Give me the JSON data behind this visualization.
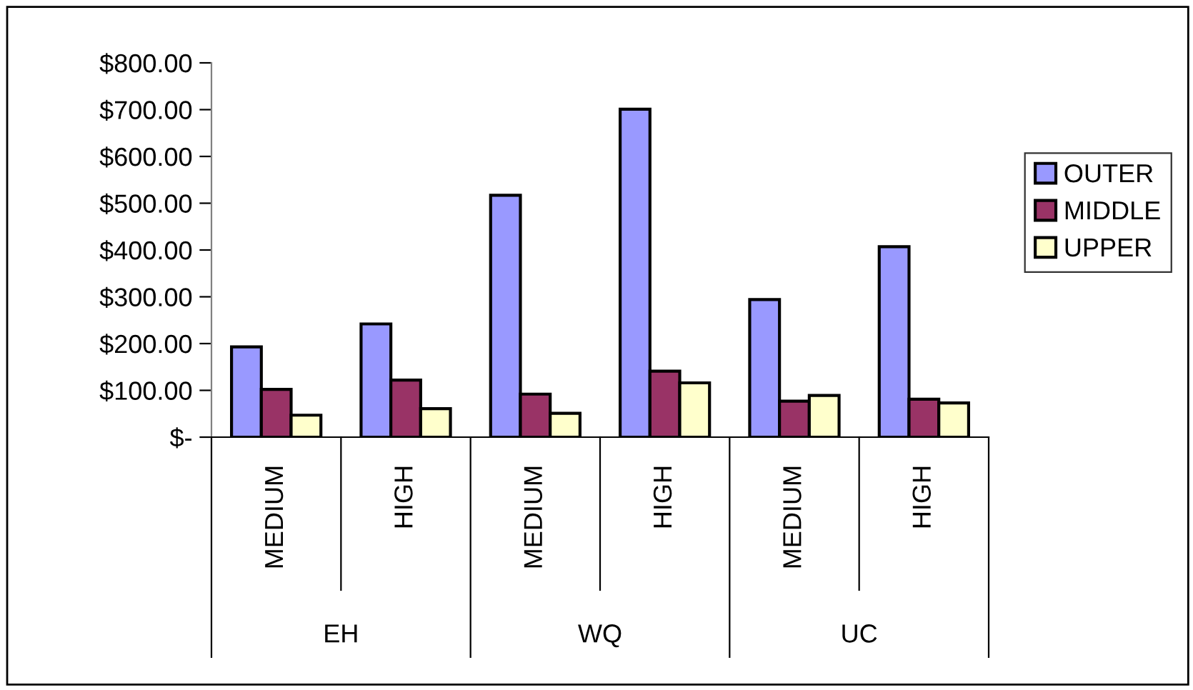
{
  "chart_data": {
    "type": "bar",
    "categories": [
      "MEDIUM",
      "HIGH",
      "MEDIUM",
      "HIGH",
      "MEDIUM",
      "HIGH"
    ],
    "annotations": [
      "EH",
      "WQ",
      "UC"
    ],
    "series": [
      {
        "name": "OUTER",
        "color": "#9999ff",
        "values": [
          193,
          242,
          517,
          701,
          294,
          407
        ]
      },
      {
        "name": "MIDDLE",
        "color": "#993366",
        "values": [
          102,
          122,
          92,
          141,
          77,
          81
        ]
      },
      {
        "name": "UPPER",
        "color": "#ffffcc",
        "values": [
          47,
          61,
          51,
          116,
          89,
          73
        ]
      }
    ],
    "ylim": [
      0,
      800
    ],
    "yticks": [
      {
        "value": 0,
        "label": "$-"
      },
      {
        "value": 100,
        "label": "$100.00"
      },
      {
        "value": 200,
        "label": "$200.00"
      },
      {
        "value": 300,
        "label": "$300.00"
      },
      {
        "value": 400,
        "label": "$400.00"
      },
      {
        "value": 500,
        "label": "$500.00"
      },
      {
        "value": 600,
        "label": "$600.00"
      },
      {
        "value": 700,
        "label": "$700.00"
      },
      {
        "value": 800,
        "label": "$800.00"
      }
    ],
    "grid": false,
    "legend": "right"
  }
}
